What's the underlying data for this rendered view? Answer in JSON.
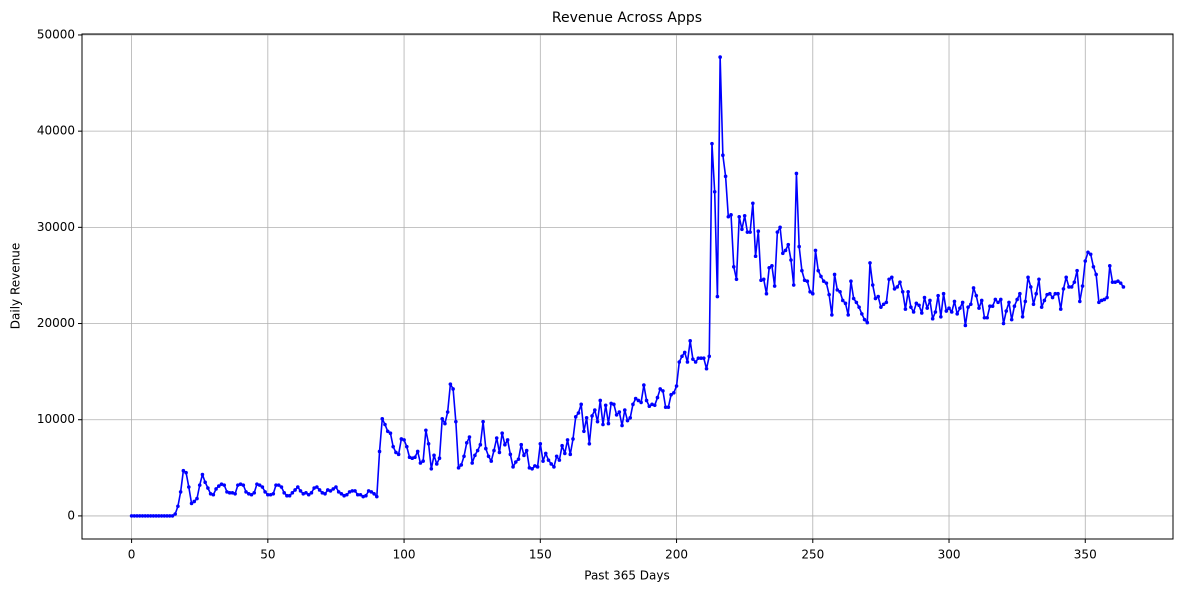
{
  "chart_data": {
    "type": "line",
    "title": "Revenue Across Apps",
    "x_label": "Past 365 Days",
    "y_label": "Daily Revenue",
    "xlim": [
      -18.2,
      382.2
    ],
    "ylim": [
      -2400,
      50100
    ],
    "xticks": [
      0,
      50,
      100,
      150,
      200,
      250,
      300,
      350
    ],
    "yticks": [
      0,
      10000,
      20000,
      30000,
      40000,
      50000
    ],
    "grid": true,
    "marker": true,
    "x": [
      0,
      1,
      2,
      3,
      4,
      5,
      6,
      7,
      8,
      9,
      10,
      11,
      12,
      13,
      14,
      15,
      16,
      17,
      18,
      19,
      20,
      21,
      22,
      23,
      24,
      25,
      26,
      27,
      28,
      29,
      30,
      31,
      32,
      33,
      34,
      35,
      36,
      37,
      38,
      39,
      40,
      41,
      42,
      43,
      44,
      45,
      46,
      47,
      48,
      49,
      50,
      51,
      52,
      53,
      54,
      55,
      56,
      57,
      58,
      59,
      60,
      61,
      62,
      63,
      64,
      65,
      66,
      67,
      68,
      69,
      70,
      71,
      72,
      73,
      74,
      75,
      76,
      77,
      78,
      79,
      80,
      81,
      82,
      83,
      84,
      85,
      86,
      87,
      88,
      89,
      90,
      91,
      92,
      93,
      94,
      95,
      96,
      97,
      98,
      99,
      100,
      101,
      102,
      103,
      104,
      105,
      106,
      107,
      108,
      109,
      110,
      111,
      112,
      113,
      114,
      115,
      116,
      117,
      118,
      119,
      120,
      121,
      122,
      123,
      124,
      125,
      126,
      127,
      128,
      129,
      130,
      131,
      132,
      133,
      134,
      135,
      136,
      137,
      138,
      139,
      140,
      141,
      142,
      143,
      144,
      145,
      146,
      147,
      148,
      149,
      150,
      151,
      152,
      153,
      154,
      155,
      156,
      157,
      158,
      159,
      160,
      161,
      162,
      163,
      164,
      165,
      166,
      167,
      168,
      169,
      170,
      171,
      172,
      173,
      174,
      175,
      176,
      177,
      178,
      179,
      180,
      181,
      182,
      183,
      184,
      185,
      186,
      187,
      188,
      189,
      190,
      191,
      192,
      193,
      194,
      195,
      196,
      197,
      198,
      199,
      200,
      201,
      202,
      203,
      204,
      205,
      206,
      207,
      208,
      209,
      210,
      211,
      212,
      213,
      214,
      215,
      216,
      217,
      218,
      219,
      220,
      221,
      222,
      223,
      224,
      225,
      226,
      227,
      228,
      229,
      230,
      231,
      232,
      233,
      234,
      235,
      236,
      237,
      238,
      239,
      240,
      241,
      242,
      243,
      244,
      245,
      246,
      247,
      248,
      249,
      250,
      251,
      252,
      253,
      254,
      255,
      256,
      257,
      258,
      259,
      260,
      261,
      262,
      263,
      264,
      265,
      266,
      267,
      268,
      269,
      270,
      271,
      272,
      273,
      274,
      275,
      276,
      277,
      278,
      279,
      280,
      281,
      282,
      283,
      284,
      285,
      286,
      287,
      288,
      289,
      290,
      291,
      292,
      293,
      294,
      295,
      296,
      297,
      298,
      299,
      300,
      301,
      302,
      303,
      304,
      305,
      306,
      307,
      308,
      309,
      310,
      311,
      312,
      313,
      314,
      315,
      316,
      317,
      318,
      319,
      320,
      321,
      322,
      323,
      324,
      325,
      326,
      327,
      328,
      329,
      330,
      331,
      332,
      333,
      334,
      335,
      336,
      337,
      338,
      339,
      340,
      341,
      342,
      343,
      344,
      345,
      346,
      347,
      348,
      349,
      350,
      351,
      352,
      353,
      354,
      355,
      356,
      357,
      358,
      359,
      360,
      361,
      362,
      363,
      364
    ],
    "series": [
      {
        "name": "Daily Revenue",
        "color": "#0000ff",
        "values": [
          0,
          0,
          0,
          0,
          0,
          0,
          0,
          0,
          0,
          0,
          0,
          0,
          0,
          0,
          0,
          0,
          200,
          1000,
          2500,
          4700,
          4500,
          3000,
          1300,
          1500,
          1800,
          3200,
          4300,
          3500,
          2900,
          2300,
          2200,
          2800,
          3100,
          3300,
          3200,
          2500,
          2400,
          2400,
          2300,
          3200,
          3300,
          3200,
          2500,
          2300,
          2200,
          2400,
          3300,
          3200,
          3000,
          2500,
          2200,
          2200,
          2300,
          3200,
          3200,
          3000,
          2400,
          2100,
          2100,
          2400,
          2700,
          3000,
          2600,
          2300,
          2400,
          2200,
          2400,
          2900,
          3000,
          2700,
          2400,
          2300,
          2700,
          2600,
          2800,
          3000,
          2500,
          2300,
          2100,
          2200,
          2500,
          2600,
          2600,
          2200,
          2200,
          2000,
          2100,
          2600,
          2500,
          2300,
          2000,
          6700,
          10100,
          9500,
          8800,
          8600,
          7200,
          6600,
          6400,
          8000,
          7900,
          7200,
          6100,
          6000,
          6100,
          6700,
          5500,
          5700,
          8900,
          7500,
          4900,
          6300,
          5400,
          6000,
          10100,
          9600,
          10800,
          13700,
          13200,
          9800,
          5000,
          5300,
          6200,
          7600,
          8200,
          5500,
          6300,
          6800,
          7400,
          9800,
          7000,
          6200,
          5700,
          6800,
          8100,
          6600,
          8600,
          7400,
          7900,
          6400,
          5100,
          5600,
          5900,
          7400,
          6300,
          6800,
          5000,
          4900,
          5200,
          5100,
          7500,
          5700,
          6500,
          5800,
          5400,
          5100,
          6200,
          5800,
          7300,
          6500,
          7900,
          6400,
          8000,
          10300,
          10700,
          11600,
          8800,
          10200,
          7500,
          10400,
          11000,
          9800,
          12000,
          9500,
          11500,
          9600,
          11700,
          11600,
          10500,
          10800,
          9400,
          11000,
          9900,
          10200,
          11600,
          12200,
          12000,
          11800,
          13600,
          12000,
          11400,
          11600,
          11500,
          12300,
          13200,
          13000,
          11300,
          11300,
          12600,
          12800,
          13500,
          16000,
          16600,
          17000,
          16000,
          18200,
          16300,
          16000,
          16400,
          16400,
          16400,
          15300,
          16600,
          38700,
          33700,
          22800,
          47700,
          37500,
          35300,
          31100,
          31300,
          25900,
          24600,
          31100,
          29800,
          31200,
          29500,
          29500,
          32500,
          27000,
          29600,
          24500,
          24600,
          23100,
          25800,
          26000,
          23900,
          29500,
          30000,
          27300,
          27600,
          28200,
          26600,
          24000,
          35600,
          28000,
          25500,
          24500,
          24400,
          23300,
          23100,
          27600,
          25500,
          24900,
          24400,
          24200,
          23000,
          20900,
          25100,
          23500,
          23300,
          22400,
          22100,
          20900,
          24400,
          22600,
          22200,
          21700,
          21000,
          20400,
          20100,
          26300,
          24000,
          22600,
          22800,
          21700,
          22000,
          22200,
          24600,
          24800,
          23600,
          23800,
          24300,
          23300,
          21500,
          23300,
          21700,
          21200,
          22100,
          21900,
          21100,
          22700,
          21600,
          22400,
          20500,
          21200,
          22900,
          20700,
          23100,
          21300,
          21600,
          21200,
          22300,
          21000,
          21600,
          22200,
          19800,
          21700,
          22000,
          23700,
          22900,
          21600,
          22400,
          20600,
          20600,
          21800,
          21800,
          22500,
          22200,
          22500,
          20000,
          21300,
          22200,
          20400,
          21800,
          22500,
          23100,
          20700,
          22300,
          24800,
          23800,
          22000,
          23100,
          24600,
          21700,
          22400,
          23000,
          23100,
          22700,
          23100,
          23100,
          21500,
          23600,
          24800,
          23800,
          23800,
          24300,
          25500,
          22300,
          23900,
          26500,
          27400,
          27200,
          25900,
          25100,
          22200,
          22400,
          22500,
          22700,
          26000,
          24300,
          24300,
          24400,
          24200,
          23800
        ]
      }
    ]
  }
}
